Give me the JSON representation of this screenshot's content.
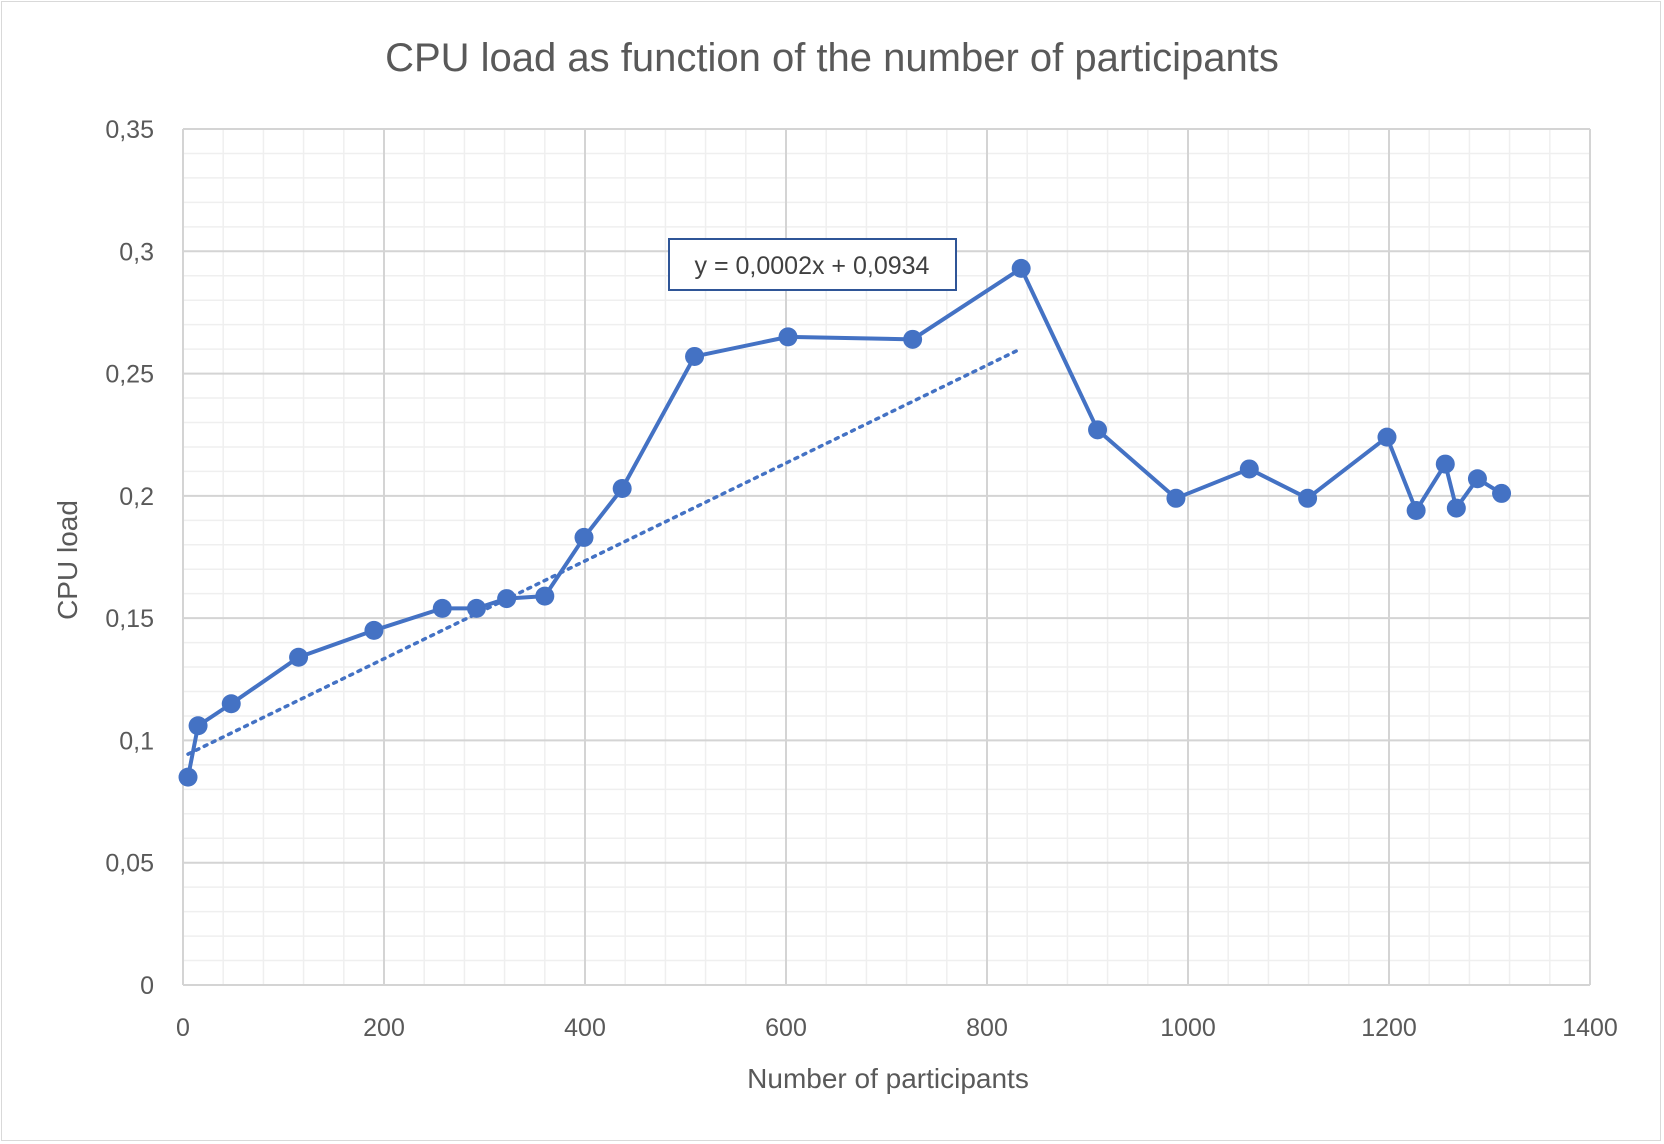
{
  "chart_data": {
    "type": "scatter",
    "title": "CPU load as function of the number of participants",
    "xlabel": "Number of participants",
    "ylabel": "CPU load",
    "xlim": [
      0,
      1400
    ],
    "ylim": [
      0,
      0.35
    ],
    "x_ticks": [
      0,
      200,
      400,
      600,
      800,
      1000,
      1200,
      1400
    ],
    "x_tick_labels": [
      "0",
      "200",
      "400",
      "600",
      "800",
      "1000",
      "1200",
      "1400"
    ],
    "y_ticks": [
      0,
      0.05,
      0.1,
      0.15,
      0.2,
      0.25,
      0.3,
      0.35
    ],
    "y_tick_labels": [
      "0",
      "0,05",
      "0,1",
      "0,15",
      "0,2",
      "0,25",
      "0,3",
      "0,35"
    ],
    "grid": {
      "major": true,
      "minor": true
    },
    "series": [
      {
        "style": "line-with-markers",
        "color": "#4472c4",
        "x": [
          5,
          15,
          48,
          115,
          190,
          258,
          292,
          322,
          360,
          399,
          437,
          509,
          602,
          726,
          834,
          910,
          988,
          1061,
          1119,
          1198,
          1227,
          1256,
          1267,
          1288,
          1312
        ],
        "y": [
          0.085,
          0.106,
          0.115,
          0.134,
          0.145,
          0.154,
          0.154,
          0.158,
          0.159,
          0.183,
          0.203,
          0.257,
          0.265,
          0.264,
          0.293,
          0.227,
          0.199,
          0.211,
          0.199,
          0.224,
          0.194,
          0.213,
          0.195,
          0.207,
          0.201
        ]
      }
    ],
    "trendline": {
      "type": "linear",
      "style": "dotted",
      "color": "#4472c4",
      "slope": 0.0002,
      "intercept": 0.0934,
      "x_range": [
        5,
        834
      ],
      "equation_label": "y = 0,0002x + 0,0934"
    }
  }
}
